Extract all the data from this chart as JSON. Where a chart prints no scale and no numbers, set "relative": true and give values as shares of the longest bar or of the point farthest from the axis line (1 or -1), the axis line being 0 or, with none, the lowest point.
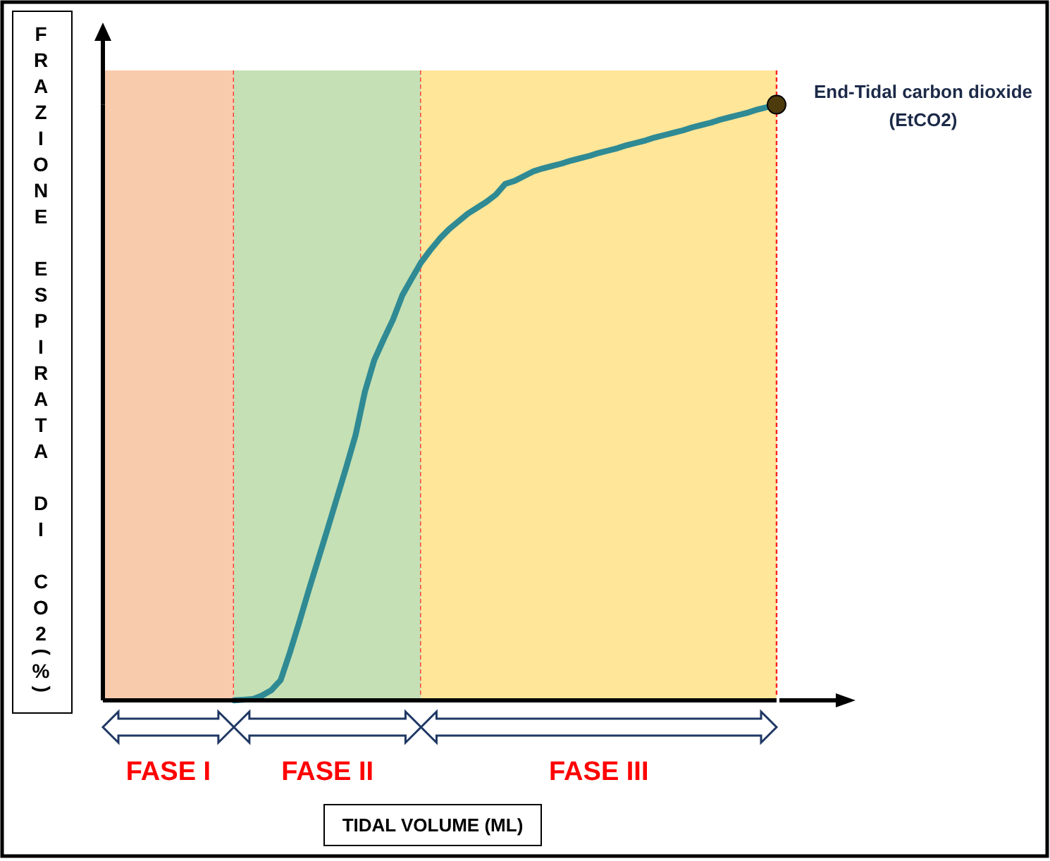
{
  "chart_data": {
    "type": "line",
    "xlabel": "TIDAL VOLUME (ML)",
    "ylabel": "FRAZIONE ESPIRATA DI CO2(%)",
    "relative": true,
    "categories": [
      null,
      null,
      null,
      null,
      null,
      null,
      null,
      "FASE I",
      null,
      null,
      null,
      null,
      null,
      null,
      null,
      null,
      null,
      null,
      null,
      null,
      null,
      null,
      null,
      null,
      "FASE II",
      null,
      null,
      null,
      null,
      null,
      null,
      null,
      null,
      null,
      null,
      null,
      null,
      null,
      null,
      null,
      null,
      null,
      null,
      null,
      null,
      null,
      null,
      null,
      null,
      null,
      null,
      null,
      null,
      "FASE III",
      null,
      null,
      null,
      null,
      null,
      null,
      null,
      null,
      null,
      null,
      null,
      null,
      null,
      null,
      null,
      null,
      null,
      null,
      null
    ],
    "series": [
      {
        "color": "#2f8a94",
        "values": [
          null,
          null,
          null,
          null,
          null,
          null,
          null,
          null,
          null,
          null,
          null,
          null,
          null,
          null,
          0,
          0.001,
          0.002,
          0.008,
          0.017,
          0.034,
          0.081,
          0.132,
          0.185,
          0.236,
          0.287,
          0.339,
          0.391,
          0.445,
          0.518,
          0.571,
          0.606,
          0.639,
          0.68,
          0.708,
          0.735,
          0.756,
          0.775,
          0.791,
          0.804,
          0.817,
          0.827,
          0.837,
          0.849,
          0.867,
          0.872,
          0.88,
          0.888,
          0.893,
          0.897,
          0.901,
          0.906,
          0.91,
          0.914,
          0.919,
          0.923,
          0.927,
          0.932,
          0.936,
          0.94,
          0.945,
          0.949,
          0.953,
          0.957,
          0.962,
          0.966,
          0.97,
          0.975,
          0.979,
          0.983,
          0.987,
          0.992,
          0.996,
          1
        ]
      },
      {
        "type": "scatter",
        "color": "#4d3b0e",
        "values": [
          null,
          null,
          null,
          null,
          null,
          null,
          null,
          null,
          null,
          null,
          null,
          null,
          null,
          null,
          null,
          null,
          null,
          null,
          null,
          null,
          null,
          null,
          null,
          null,
          null,
          null,
          null,
          null,
          null,
          null,
          null,
          null,
          null,
          null,
          null,
          null,
          null,
          null,
          null,
          null,
          null,
          null,
          null,
          null,
          null,
          null,
          null,
          null,
          null,
          null,
          null,
          null,
          null,
          null,
          null,
          null,
          null,
          null,
          null,
          null,
          null,
          null,
          null,
          null,
          null,
          null,
          null,
          null,
          null,
          null,
          null,
          null,
          1
        ]
      }
    ],
    "annotations": [
      "End-Tidal carbon dioxide (EtCO2)"
    ]
  }
}
